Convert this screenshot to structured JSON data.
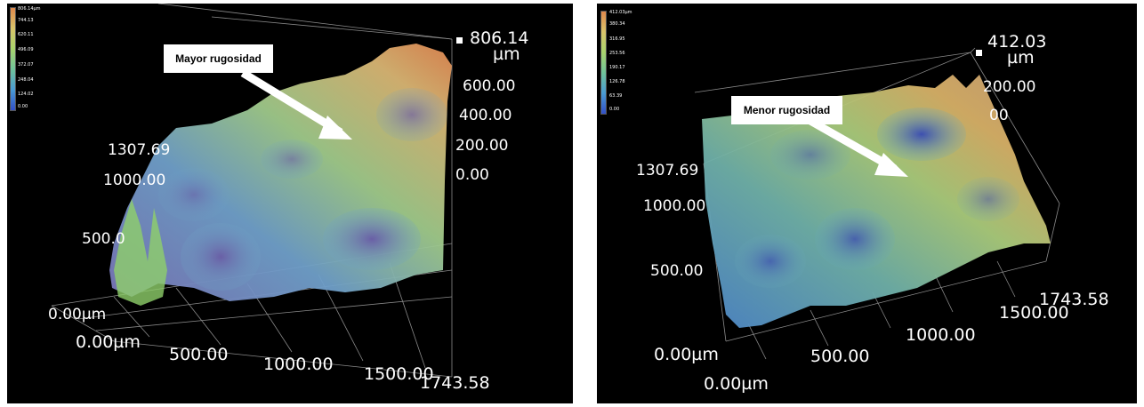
{
  "left": {
    "max_label": "806.14",
    "unit": "µm",
    "z_ticks": [
      "600.00",
      "400.00",
      "200.00",
      "0.00"
    ],
    "y_ticks": [
      "1307.69",
      "1000.00",
      "500.0",
      "0.00µm"
    ],
    "x_ticks": [
      "0.00µm",
      "500.00",
      "1000.00",
      "1500.00",
      "1743.58"
    ],
    "scale_ticks": [
      "806.14µm",
      "744.13",
      "620.11",
      "496.09",
      "372.07",
      "248.04",
      "124.02",
      "0.00"
    ],
    "callout": "Mayor rugosidad",
    "colors": {
      "high": "#e0894c",
      "mid": "#b9cc6e",
      "low": "#4a83d0",
      "deep": "#7b6aa8"
    }
  },
  "right": {
    "max_label": "412.03",
    "unit": "µm",
    "z_ticks": [
      "200.00",
      "00"
    ],
    "y_ticks": [
      "1307.69",
      "1000.00",
      "500.00",
      "0.00µm"
    ],
    "x_ticks": [
      "0.00µm",
      "500.00",
      "1000.00",
      "1500.00",
      "1743.58"
    ],
    "scale_ticks": [
      "412.03µm",
      "380.34",
      "316.95",
      "253.56",
      "190.17",
      "126.78",
      "63.39",
      "0.00"
    ],
    "callout": "Menor rugosidad",
    "colors": {
      "high": "#d9a05a",
      "mid": "#a7c77a",
      "low": "#4f86c8",
      "deep": "#3b5fb0"
    }
  }
}
